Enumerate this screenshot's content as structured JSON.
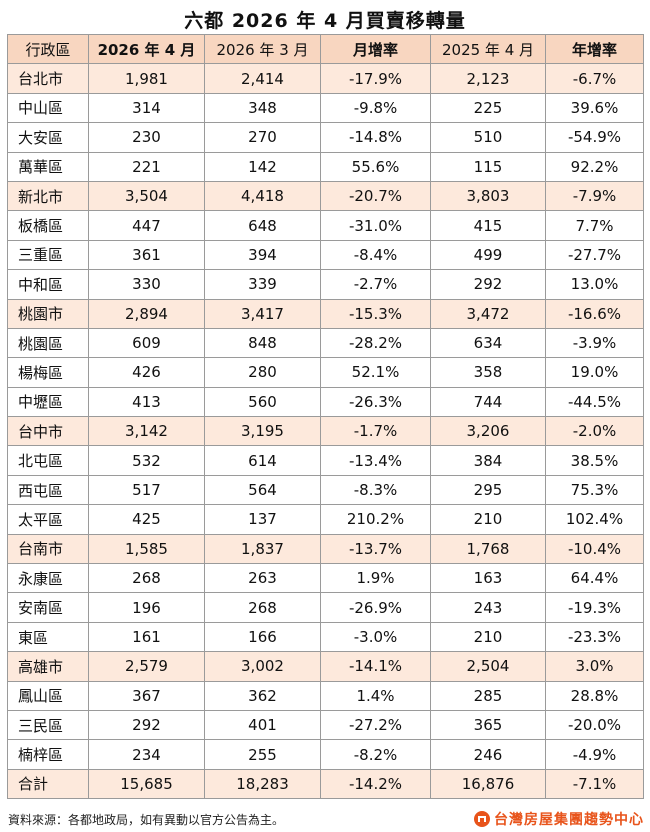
{
  "title": "六都 2026 年 4 月買賣移轉量",
  "headers": [
    "行政區",
    "2026 年 4 月",
    "2026 年 3 月",
    "月增率",
    "2025 年 4 月",
    "年增率"
  ],
  "rows": [
    {
      "name": "台北市",
      "city": true,
      "apr2026": "1,981",
      "mar2026": "2,414",
      "mom": "-17.9%",
      "apr2025": "2,123",
      "yoy": "-6.7%"
    },
    {
      "name": "中山區",
      "city": false,
      "apr2026": "314",
      "mar2026": "348",
      "mom": "-9.8%",
      "apr2025": "225",
      "yoy": "39.6%"
    },
    {
      "name": "大安區",
      "city": false,
      "apr2026": "230",
      "mar2026": "270",
      "mom": "-14.8%",
      "apr2025": "510",
      "yoy": "-54.9%"
    },
    {
      "name": "萬華區",
      "city": false,
      "apr2026": "221",
      "mar2026": "142",
      "mom": "55.6%",
      "apr2025": "115",
      "yoy": "92.2%"
    },
    {
      "name": "新北市",
      "city": true,
      "apr2026": "3,504",
      "mar2026": "4,418",
      "mom": "-20.7%",
      "apr2025": "3,803",
      "yoy": "-7.9%"
    },
    {
      "name": "板橋區",
      "city": false,
      "apr2026": "447",
      "mar2026": "648",
      "mom": "-31.0%",
      "apr2025": "415",
      "yoy": "7.7%"
    },
    {
      "name": "三重區",
      "city": false,
      "apr2026": "361",
      "mar2026": "394",
      "mom": "-8.4%",
      "apr2025": "499",
      "yoy": "-27.7%"
    },
    {
      "name": "中和區",
      "city": false,
      "apr2026": "330",
      "mar2026": "339",
      "mom": "-2.7%",
      "apr2025": "292",
      "yoy": "13.0%"
    },
    {
      "name": "桃園市",
      "city": true,
      "apr2026": "2,894",
      "mar2026": "3,417",
      "mom": "-15.3%",
      "apr2025": "3,472",
      "yoy": "-16.6%"
    },
    {
      "name": "桃園區",
      "city": false,
      "apr2026": "609",
      "mar2026": "848",
      "mom": "-28.2%",
      "apr2025": "634",
      "yoy": "-3.9%"
    },
    {
      "name": "楊梅區",
      "city": false,
      "apr2026": "426",
      "mar2026": "280",
      "mom": "52.1%",
      "apr2025": "358",
      "yoy": "19.0%"
    },
    {
      "name": "中壢區",
      "city": false,
      "apr2026": "413",
      "mar2026": "560",
      "mom": "-26.3%",
      "apr2025": "744",
      "yoy": "-44.5%"
    },
    {
      "name": "台中市",
      "city": true,
      "apr2026": "3,142",
      "mar2026": "3,195",
      "mom": "-1.7%",
      "apr2025": "3,206",
      "yoy": "-2.0%"
    },
    {
      "name": "北屯區",
      "city": false,
      "apr2026": "532",
      "mar2026": "614",
      "mom": "-13.4%",
      "apr2025": "384",
      "yoy": "38.5%"
    },
    {
      "name": "西屯區",
      "city": false,
      "apr2026": "517",
      "mar2026": "564",
      "mom": "-8.3%",
      "apr2025": "295",
      "yoy": "75.3%"
    },
    {
      "name": "太平區",
      "city": false,
      "apr2026": "425",
      "mar2026": "137",
      "mom": "210.2%",
      "apr2025": "210",
      "yoy": "102.4%"
    },
    {
      "name": "台南市",
      "city": true,
      "apr2026": "1,585",
      "mar2026": "1,837",
      "mom": "-13.7%",
      "apr2025": "1,768",
      "yoy": "-10.4%"
    },
    {
      "name": "永康區",
      "city": false,
      "apr2026": "268",
      "mar2026": "263",
      "mom": "1.9%",
      "apr2025": "163",
      "yoy": "64.4%"
    },
    {
      "name": "安南區",
      "city": false,
      "apr2026": "196",
      "mar2026": "268",
      "mom": "-26.9%",
      "apr2025": "243",
      "yoy": "-19.3%"
    },
    {
      "name": "東區",
      "city": false,
      "apr2026": "161",
      "mar2026": "166",
      "mom": "-3.0%",
      "apr2025": "210",
      "yoy": "-23.3%"
    },
    {
      "name": "高雄市",
      "city": true,
      "apr2026": "2,579",
      "mar2026": "3,002",
      "mom": "-14.1%",
      "apr2025": "2,504",
      "yoy": "3.0%"
    },
    {
      "name": "鳳山區",
      "city": false,
      "apr2026": "367",
      "mar2026": "362",
      "mom": "1.4%",
      "apr2025": "285",
      "yoy": "28.8%"
    },
    {
      "name": "三民區",
      "city": false,
      "apr2026": "292",
      "mar2026": "401",
      "mom": "-27.2%",
      "apr2025": "365",
      "yoy": "-20.0%"
    },
    {
      "name": "楠梓區",
      "city": false,
      "apr2026": "234",
      "mar2026": "255",
      "mom": "-8.2%",
      "apr2025": "246",
      "yoy": "-4.9%"
    },
    {
      "name": "合計",
      "city": true,
      "apr2026": "15,685",
      "mar2026": "18,283",
      "mom": "-14.2%",
      "apr2025": "16,876",
      "yoy": "-7.1%"
    }
  ],
  "footer": {
    "source": "資料來源：各都地政局，如有異動以官方公告為主。",
    "brand": "台灣房屋集團趨勢中心"
  },
  "colors": {
    "header_bg": "#f8d6c0",
    "city_row_bg": "#fde9dc",
    "brand": "#e8541b"
  }
}
